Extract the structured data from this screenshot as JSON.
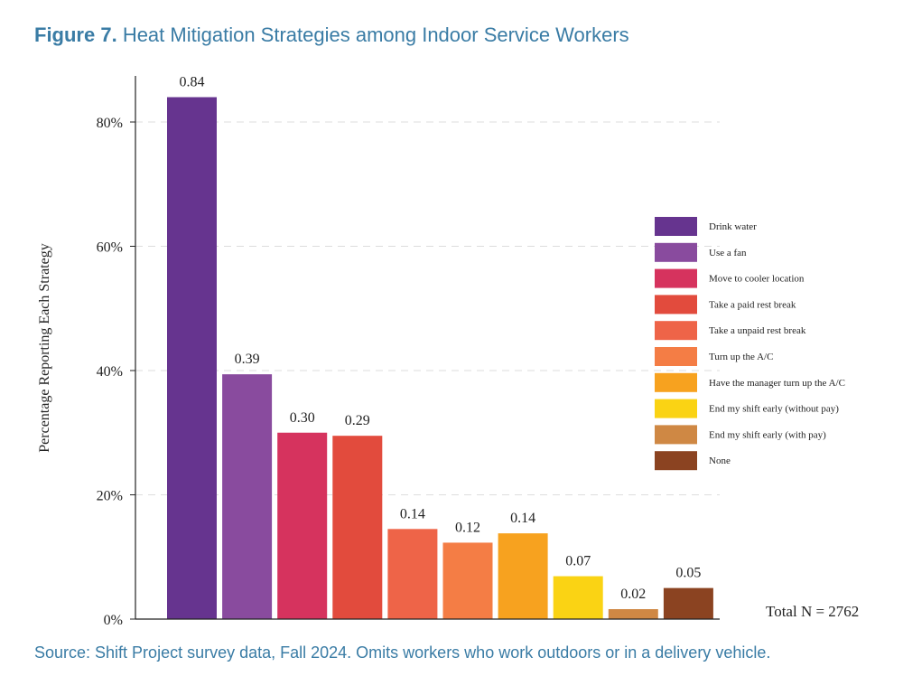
{
  "figure": {
    "number": "Figure 7.",
    "title": "Heat Mitigation Strategies among Indoor Service Workers",
    "source": "Source: Shift Project survey data, Fall 2024. Omits workers who work outdoors or in a delivery vehicle.",
    "total_n": "Total N = 2762"
  },
  "chart_data": {
    "type": "bar",
    "ylabel": "Percentage Reporting Each Strategy",
    "xlabel": "",
    "ylim": [
      0,
      0.8
    ],
    "y_ticks": [
      {
        "value": 0,
        "label": "0%"
      },
      {
        "value": 0.2,
        "label": "20%"
      },
      {
        "value": 0.4,
        "label": "40%"
      },
      {
        "value": 0.6,
        "label": "60%"
      },
      {
        "value": 0.8,
        "label": "80%"
      }
    ],
    "grid": "horizontal dashed",
    "legend_position": "right",
    "categories": [
      "Drink water",
      "Use a fan",
      "Move to cooler location",
      "Take a paid rest break",
      "Take a unpaid rest break",
      "Turn up the A/C",
      "Have the manager turn up the A/C",
      "End my shift early (without pay)",
      "End my shift early (with pay)",
      "None"
    ],
    "values": [
      0.84,
      0.394,
      0.3,
      0.295,
      0.145,
      0.123,
      0.138,
      0.069,
      0.016,
      0.05
    ],
    "data_labels": [
      "0.84",
      "0.39",
      "0.30",
      "0.29",
      "0.14",
      "0.12",
      "0.14",
      "0.07",
      "0.02",
      "0.05"
    ],
    "colors": [
      "#66348f",
      "#894b9e",
      "#d6335e",
      "#e24b3d",
      "#ee6448",
      "#f47d45",
      "#f7a21f",
      "#fad314",
      "#cf8844",
      "#8b4321"
    ]
  }
}
